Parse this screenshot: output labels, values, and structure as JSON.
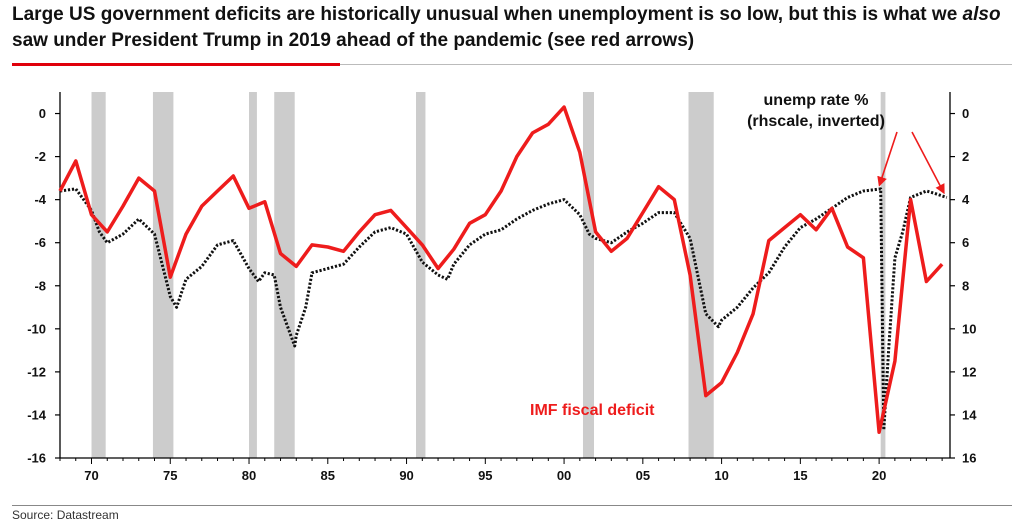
{
  "header": {
    "title_before": "Large US government deficits are historically unusual when unemployment is so low, but this is what we ",
    "title_em": "also",
    "title_after": " saw under President Trump in 2019 ahead of the pandemic (see red arrows)"
  },
  "footer": {
    "source": "Source: Datastream"
  },
  "chart_data": {
    "type": "line",
    "colors": {
      "deficit": "#ee1c1c",
      "unemployment": "#111111",
      "recession": "#cccccc",
      "arrow": "#ee1c1c"
    },
    "x_ticks": [
      1970,
      1975,
      1980,
      1985,
      1990,
      1995,
      2000,
      2005,
      2010,
      2015,
      2020
    ],
    "x_tick_labels": [
      "70",
      "75",
      "80",
      "85",
      "90",
      "95",
      "00",
      "05",
      "10",
      "15",
      "20"
    ],
    "xlim": [
      1968,
      2024.5
    ],
    "left_axis": {
      "ylim": [
        -16,
        1
      ],
      "ticks": [
        0,
        -2,
        -4,
        -6,
        -8,
        -10,
        -12,
        -14,
        -16
      ]
    },
    "right_axis": {
      "inverted": true,
      "ylim": [
        -1,
        16
      ],
      "ticks": [
        0,
        2,
        4,
        6,
        8,
        10,
        12,
        14,
        16
      ]
    },
    "recessions": [
      [
        1970.0,
        1970.9
      ],
      [
        1973.9,
        1975.2
      ],
      [
        1980.0,
        1980.5
      ],
      [
        1981.6,
        1982.9
      ],
      [
        1990.6,
        1991.2
      ],
      [
        2001.2,
        2001.9
      ],
      [
        2007.9,
        2009.5
      ],
      [
        2020.1,
        2020.4
      ]
    ],
    "annotations": {
      "deficit_label": "IMF fiscal deficit",
      "unemp_label_1": "unemp rate %",
      "unemp_label_2": "(rhscale, inverted)"
    },
    "series": [
      {
        "name": "IMF fiscal deficit",
        "axis": "left",
        "x": [
          1968,
          1969,
          1970,
          1971,
          1972,
          1973,
          1974,
          1975,
          1976,
          1977,
          1978,
          1979,
          1980,
          1981,
          1982,
          1983,
          1984,
          1985,
          1986,
          1987,
          1988,
          1989,
          1990,
          1991,
          1992,
          1993,
          1994,
          1995,
          1996,
          1997,
          1998,
          1999,
          2000,
          2001,
          2002,
          2003,
          2004,
          2005,
          2006,
          2007,
          2008,
          2009,
          2010,
          2011,
          2012,
          2013,
          2014,
          2015,
          2016,
          2017,
          2018,
          2019,
          2020,
          2021,
          2022,
          2023,
          2024
        ],
        "values": [
          -3.6,
          -2.2,
          -4.7,
          -5.5,
          -4.3,
          -3.0,
          -3.6,
          -7.6,
          -5.6,
          -4.3,
          -3.6,
          -2.9,
          -4.4,
          -4.1,
          -6.5,
          -7.1,
          -6.1,
          -6.2,
          -6.4,
          -5.5,
          -4.7,
          -4.5,
          -5.3,
          -6.1,
          -7.2,
          -6.3,
          -5.1,
          -4.7,
          -3.6,
          -2.0,
          -0.9,
          -0.5,
          0.3,
          -1.8,
          -5.5,
          -6.4,
          -5.8,
          -4.6,
          -3.4,
          -4.0,
          -7.5,
          -13.1,
          -12.5,
          -11.1,
          -9.3,
          -5.9,
          -5.3,
          -4.7,
          -5.4,
          -4.4,
          -6.2,
          -6.7,
          -14.8,
          -11.5,
          -4.0,
          -7.8,
          -7.0
        ]
      },
      {
        "name": "unemp rate %",
        "axis": "right",
        "x": [
          1968,
          1969,
          1970,
          1970.5,
          1971,
          1972,
          1973,
          1974,
          1975,
          1975.4,
          1976,
          1977,
          1978,
          1979,
          1980,
          1980.6,
          1981,
          1981.6,
          1982,
          1982.9,
          1983,
          1983.6,
          1984,
          1985,
          1986,
          1987,
          1988,
          1989,
          1990,
          1991,
          1992,
          1992.6,
          1993,
          1994,
          1995,
          1996,
          1997,
          1998,
          1999,
          2000,
          2001,
          2001.6,
          2002,
          2003,
          2004,
          2005,
          2006,
          2007,
          2008,
          2009,
          2009.8,
          2010,
          2011,
          2012,
          2013,
          2014,
          2015,
          2016,
          2017,
          2018,
          2019,
          2020.1,
          2020.3,
          2020.6,
          2021,
          2021.5,
          2022,
          2023,
          2023.5,
          2024.3
        ],
        "values": [
          3.6,
          3.5,
          4.5,
          5.5,
          6.0,
          5.6,
          4.9,
          5.6,
          8.5,
          9.0,
          7.7,
          7.1,
          6.1,
          5.9,
          7.2,
          7.8,
          7.4,
          7.5,
          9.0,
          10.8,
          10.3,
          9.0,
          7.4,
          7.2,
          7.0,
          6.2,
          5.5,
          5.3,
          5.6,
          6.9,
          7.5,
          7.7,
          7.0,
          6.1,
          5.6,
          5.4,
          4.9,
          4.5,
          4.2,
          4.0,
          4.7,
          5.6,
          5.8,
          6.0,
          5.5,
          5.1,
          4.6,
          4.6,
          5.8,
          9.3,
          9.9,
          9.6,
          9.0,
          8.1,
          7.4,
          6.2,
          5.3,
          4.9,
          4.4,
          3.9,
          3.6,
          3.5,
          14.7,
          11.0,
          6.7,
          5.5,
          3.9,
          3.6,
          3.7,
          3.9
        ]
      }
    ]
  }
}
